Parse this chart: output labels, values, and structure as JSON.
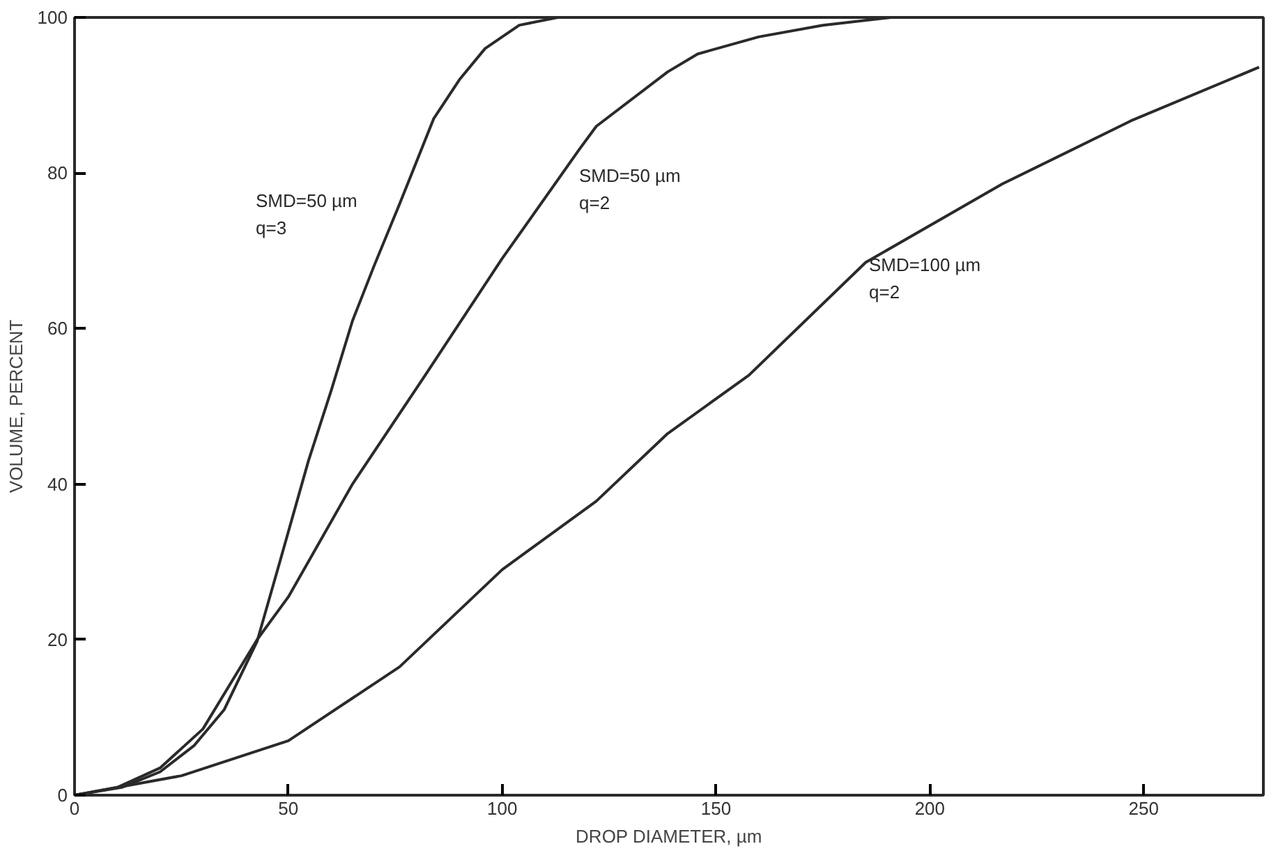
{
  "chart_data": {
    "type": "line",
    "xlabel": "DROP DIAMETER, µm",
    "ylabel": "VOLUME, PERCENT",
    "xlim": [
      0,
      278
    ],
    "ylim": [
      0,
      100
    ],
    "xticks": [
      0,
      50,
      100,
      150,
      200,
      250
    ],
    "yticks": [
      0,
      20,
      40,
      60,
      80,
      100
    ],
    "grid": false,
    "marker": "none",
    "line_style": "solid",
    "series": [
      {
        "name": "SMD=50 µm\nq=3",
        "color": "#2a2a2a",
        "x": [
          0,
          11,
          20,
          28,
          35,
          42.7,
          48,
          54.7,
          60,
          65,
          70,
          76,
          84,
          90,
          96,
          104,
          113
        ],
        "values": [
          0,
          1,
          3,
          6.4,
          11,
          19.8,
          30,
          43,
          52,
          61,
          68,
          76,
          87,
          92,
          96,
          99,
          100
        ]
      },
      {
        "name": "SMD=50 µm\nq=2",
        "color": "#2a2a2a",
        "x": [
          0,
          10,
          20,
          30,
          42.7,
          50,
          65,
          82,
          100,
          118,
          122,
          138.7,
          145.7,
          160,
          175,
          191
        ],
        "values": [
          0,
          1,
          3.5,
          8.5,
          20,
          25.5,
          40,
          54,
          69,
          83,
          86,
          93,
          95.3,
          97.5,
          99,
          100
        ]
      },
      {
        "name": "SMD=100 µm\nq=2",
        "color": "#2a2a2a",
        "x": [
          0,
          25,
          50,
          76,
          100,
          122,
          138.7,
          157.7,
          185,
          217,
          247,
          277
        ],
        "values": [
          0,
          2.5,
          7,
          16.5,
          29,
          37.8,
          46.5,
          54,
          68.5,
          78.6,
          86.7,
          93.6
        ]
      }
    ]
  }
}
